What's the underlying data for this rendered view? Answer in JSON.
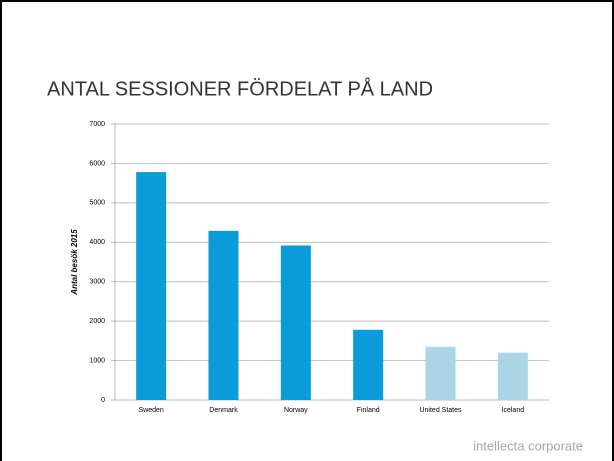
{
  "chart_data": {
    "type": "bar",
    "title": "ANTAL SESSIONER FÖRDELAT PÅ LAND",
    "y_label": "Antal besök 2015",
    "categories": [
      "Sweden",
      "Denmark",
      "Norway",
      "Finland",
      "United States",
      "Iceland"
    ],
    "values": [
      5780,
      4290,
      3920,
      1780,
      1350,
      1200
    ],
    "colors": [
      "#0a9bd9",
      "#0a9bd9",
      "#0a9bd9",
      "#0a9bd9",
      "#a9d5e7",
      "#a9d5e7"
    ],
    "ylim": [
      0,
      7000
    ],
    "yticks": [
      0,
      1000,
      2000,
      3000,
      4000,
      5000,
      6000,
      7000
    ],
    "grid": true
  },
  "footer": "intellecta corporate"
}
